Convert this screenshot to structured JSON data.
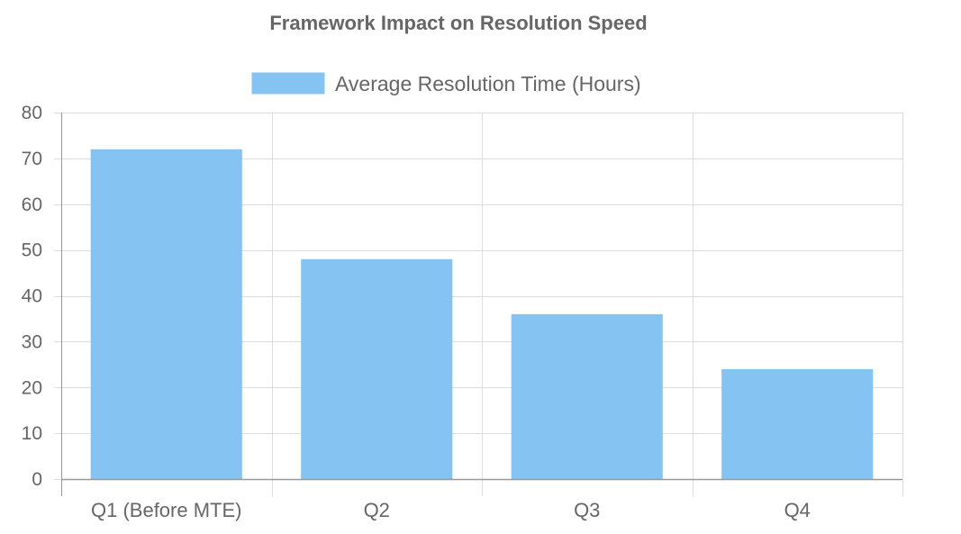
{
  "colors": {
    "bar_fill": "#85c3f2",
    "bar_stroke": "#85c3f2",
    "grid": "#dddddd",
    "axis": "#999999",
    "text": "#666666",
    "background": "#ffffff"
  },
  "chart_data": {
    "type": "bar",
    "title": "Framework Impact on Resolution Speed",
    "categories": [
      "Q1 (Before MTE)",
      "Q2",
      "Q3",
      "Q4"
    ],
    "series": [
      {
        "name": "Average Resolution Time (Hours)",
        "values": [
          72,
          48,
          36,
          24
        ],
        "color": "#85c3f2"
      }
    ],
    "ylim": [
      0,
      80
    ],
    "yticks": [
      "0",
      "10",
      "20",
      "30",
      "40",
      "50",
      "60",
      "70",
      "80"
    ],
    "grid": true,
    "legend_position": "top"
  }
}
